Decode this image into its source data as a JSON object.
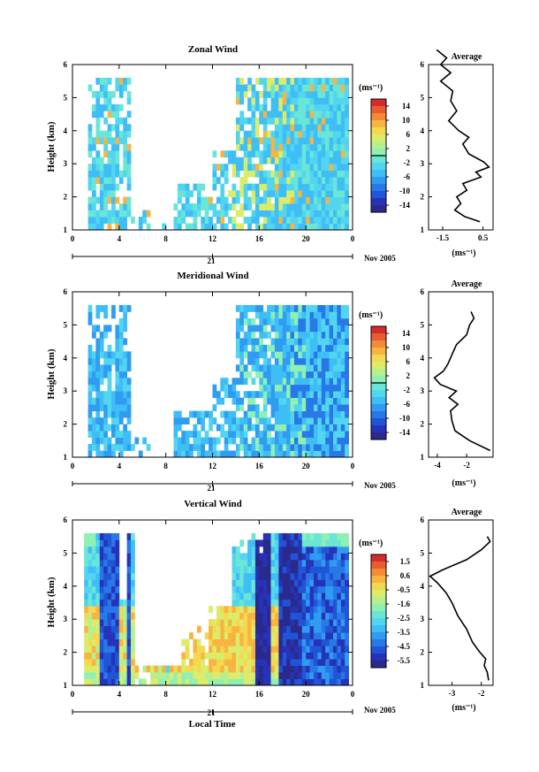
{
  "figure": {
    "date_label": "Nov 2005",
    "day_label": "21",
    "xlabel": "Local Time",
    "colorbar_unit": "(ms⁻¹)",
    "average_unit": "(ms⁻¹)"
  },
  "chart_data": [
    {
      "type": "heatmap",
      "title": "Zonal Wind",
      "ylabel": "Height (km)",
      "xlabel": "Local Time",
      "xticks": [
        "0",
        "4",
        "8",
        "12",
        "16",
        "20",
        "0"
      ],
      "ylim": [
        1,
        6
      ],
      "yticks": [
        "1",
        "2",
        "3",
        "4",
        "5",
        "6"
      ],
      "colorbar": {
        "ticks": [
          "14",
          "10",
          "6",
          "2",
          "-2",
          "-6",
          "-10",
          "-14"
        ],
        "range": [
          -16,
          16
        ],
        "zero_line_value": 0
      },
      "average": {
        "title": "Average",
        "xticks": [
          "-1.5",
          "0.5"
        ],
        "xlim": [
          -2.2,
          1.0
        ],
        "profile": [
          {
            "h": 1.25,
            "v": 0.35
          },
          {
            "h": 1.4,
            "v": -0.4
          },
          {
            "h": 1.6,
            "v": -0.9
          },
          {
            "h": 1.8,
            "v": -0.6
          },
          {
            "h": 2.0,
            "v": -0.8
          },
          {
            "h": 2.2,
            "v": -0.3
          },
          {
            "h": 2.4,
            "v": -0.5
          },
          {
            "h": 2.6,
            "v": 0.4
          },
          {
            "h": 2.75,
            "v": 0.15
          },
          {
            "h": 2.9,
            "v": 0.8
          },
          {
            "h": 3.05,
            "v": 0.55
          },
          {
            "h": 3.3,
            "v": -0.2
          },
          {
            "h": 3.6,
            "v": -0.5
          },
          {
            "h": 3.8,
            "v": -0.2
          },
          {
            "h": 4.0,
            "v": -0.7
          },
          {
            "h": 4.3,
            "v": -1.2
          },
          {
            "h": 4.6,
            "v": -0.8
          },
          {
            "h": 4.9,
            "v": -1.1
          },
          {
            "h": 5.2,
            "v": -1.0
          },
          {
            "h": 5.5,
            "v": -1.6
          },
          {
            "h": 5.75,
            "v": -1.1
          },
          {
            "h": 6.0,
            "v": -1.6
          },
          {
            "h": 6.2,
            "v": -1.3
          },
          {
            "h": 6.45,
            "v": -1.8
          }
        ]
      }
    },
    {
      "type": "heatmap",
      "title": "Meridional Wind",
      "ylabel": "Height (km)",
      "xlabel": "Local Time",
      "xticks": [
        "0",
        "4",
        "8",
        "12",
        "16",
        "20",
        "0"
      ],
      "ylim": [
        1,
        6
      ],
      "yticks": [
        "1",
        "2",
        "3",
        "4",
        "5",
        "6"
      ],
      "colorbar": {
        "ticks": [
          "14",
          "10",
          "6",
          "2",
          "-2",
          "-6",
          "-10",
          "-14"
        ],
        "range": [
          -16,
          16
        ],
        "zero_line_value": 0
      },
      "average": {
        "title": "Average",
        "xticks": [
          "-4",
          "-2"
        ],
        "xlim": [
          -4.6,
          -0.2
        ],
        "profile": [
          {
            "h": 1.2,
            "v": -0.4
          },
          {
            "h": 1.5,
            "v": -1.8
          },
          {
            "h": 1.8,
            "v": -2.8
          },
          {
            "h": 2.1,
            "v": -3.0
          },
          {
            "h": 2.4,
            "v": -3.1
          },
          {
            "h": 2.6,
            "v": -2.6
          },
          {
            "h": 2.8,
            "v": -3.2
          },
          {
            "h": 3.0,
            "v": -2.7
          },
          {
            "h": 3.2,
            "v": -3.8
          },
          {
            "h": 3.4,
            "v": -4.2
          },
          {
            "h": 3.6,
            "v": -3.6
          },
          {
            "h": 3.8,
            "v": -3.3
          },
          {
            "h": 4.1,
            "v": -3.0
          },
          {
            "h": 4.4,
            "v": -2.7
          },
          {
            "h": 4.7,
            "v": -2.0
          },
          {
            "h": 5.0,
            "v": -1.8
          },
          {
            "h": 5.2,
            "v": -1.5
          },
          {
            "h": 5.4,
            "v": -1.7
          }
        ]
      }
    },
    {
      "type": "heatmap",
      "title": "Vertical Wind",
      "ylabel": "Height (km)",
      "xlabel": "Local Time",
      "xticks": [
        "0",
        "4",
        "8",
        "12",
        "16",
        "20",
        "0"
      ],
      "ylim": [
        1,
        6
      ],
      "yticks": [
        "1",
        "2",
        "3",
        "4",
        "5",
        "6"
      ],
      "colorbar": {
        "ticks": [
          "1.5",
          "0.6",
          "-0.5",
          "-1.6",
          "-2.5",
          "-3.5",
          "-4.5",
          "-5.5"
        ],
        "range": [
          -6.0,
          2.0
        ]
      },
      "average": {
        "title": "Average",
        "xticks": [
          "-3",
          "-2"
        ],
        "xlim": [
          -3.8,
          -1.6
        ],
        "profile": [
          {
            "h": 1.15,
            "v": -1.75
          },
          {
            "h": 1.4,
            "v": -1.8
          },
          {
            "h": 1.6,
            "v": -1.9
          },
          {
            "h": 1.8,
            "v": -1.85
          },
          {
            "h": 2.0,
            "v": -2.05
          },
          {
            "h": 2.3,
            "v": -2.3
          },
          {
            "h": 2.7,
            "v": -2.5
          },
          {
            "h": 3.1,
            "v": -2.8
          },
          {
            "h": 3.5,
            "v": -3.0
          },
          {
            "h": 3.8,
            "v": -3.2
          },
          {
            "h": 4.1,
            "v": -3.5
          },
          {
            "h": 4.3,
            "v": -3.75
          },
          {
            "h": 4.5,
            "v": -3.3
          },
          {
            "h": 4.8,
            "v": -2.5
          },
          {
            "h": 5.1,
            "v": -2.0
          },
          {
            "h": 5.35,
            "v": -1.7
          },
          {
            "h": 5.5,
            "v": -1.8
          }
        ]
      }
    }
  ]
}
